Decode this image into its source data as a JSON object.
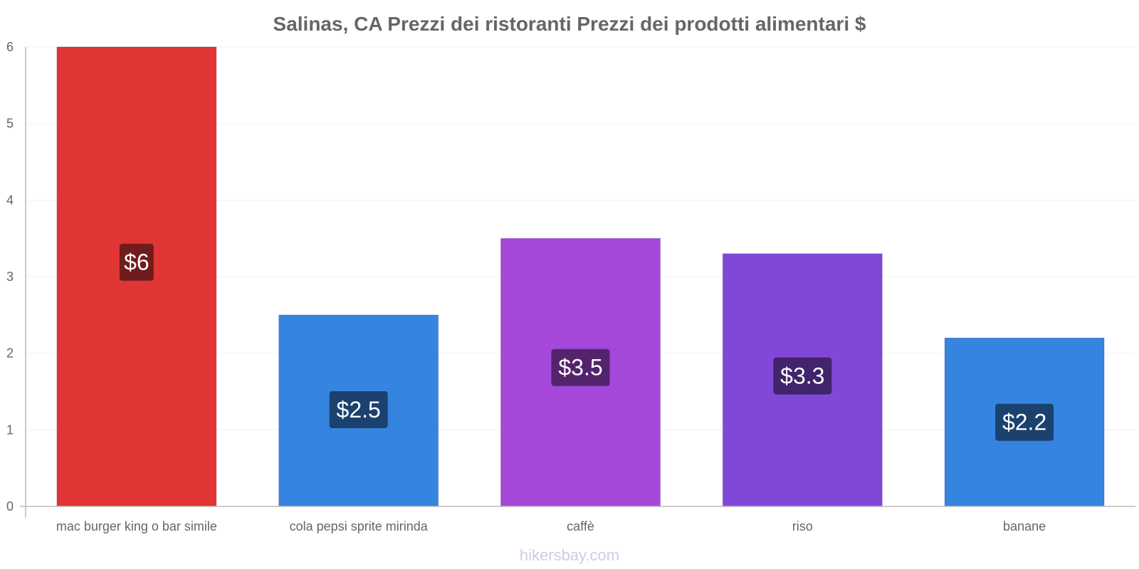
{
  "chart_data": {
    "type": "bar",
    "title": "Salinas, CA Prezzi dei ristoranti Prezzi dei prodotti alimentari $",
    "categories": [
      "mac burger king o bar simile",
      "cola pepsi sprite mirinda",
      "caffè",
      "riso",
      "banane"
    ],
    "values": [
      6,
      2.5,
      3.5,
      3.3,
      2.2
    ],
    "data_labels": [
      "$6",
      "$2.5",
      "$3.5",
      "$3.3",
      "$2.2"
    ],
    "bar_colors": [
      "#e03535",
      "#3584e0",
      "#a547d8",
      "#8148d8",
      "#3584e0"
    ],
    "label_bg_colors": [
      "#701c1c",
      "#1b416f",
      "#53246c",
      "#41246c",
      "#1b416f"
    ],
    "y_ticks": [
      "0",
      "1",
      "2",
      "3",
      "4",
      "5",
      "6"
    ],
    "ylim": [
      0,
      6
    ],
    "xlabel": "",
    "ylabel": "",
    "grid": true
  },
  "watermark": "hikersbay.com"
}
